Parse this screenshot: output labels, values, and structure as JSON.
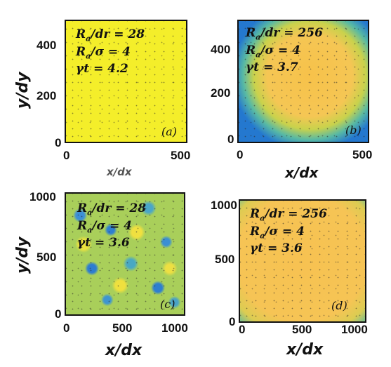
{
  "panels": [
    {
      "id": "a",
      "tag": "(a)",
      "params": {
        "line1_sub": "a",
        "line1_rest": "/dr = 28",
        "line2_sub": "a",
        "line2_rest": "/σ = 4",
        "line3": "γt = 4.2"
      },
      "x_ticks": [
        "0",
        "500"
      ],
      "y_ticks": [
        "0",
        "200",
        "400"
      ],
      "xlabel": "x/dx",
      "ylabel": "y/dy",
      "colors": {
        "base": "#f4ee2a",
        "edge": "#f4ee2a"
      }
    },
    {
      "id": "b",
      "tag": "(b)",
      "params": {
        "line1_sub": "a",
        "line1_rest": "/dr = 256",
        "line2_sub": "a",
        "line2_rest": "/σ = 4",
        "line3": "γt = 3.7"
      },
      "x_ticks": [
        "0",
        "500"
      ],
      "y_ticks": [
        "0",
        "200",
        "400"
      ],
      "xlabel": "x/dx",
      "ylabel": "",
      "colors": {
        "base": "#f7c846",
        "edge": "#2d8fd8"
      }
    },
    {
      "id": "c",
      "tag": "(c)",
      "params": {
        "line1_sub": "a",
        "line1_rest": "/dr = 28",
        "line2_sub": "a",
        "line2_rest": "/σ = 4",
        "line3": "γt = 3.6"
      },
      "x_ticks": [
        "0",
        "500",
        "1000"
      ],
      "y_ticks": [
        "0",
        "500",
        "1000"
      ],
      "xlabel": "x/dx",
      "ylabel": "y/dy",
      "colors": {
        "base": "#c9d74a",
        "edge": "#3c9fd0"
      }
    },
    {
      "id": "d",
      "tag": "(d)",
      "params": {
        "line1_sub": "a",
        "line1_rest": "/dr = 256",
        "line2_sub": "a",
        "line2_rest": "/σ = 4",
        "line3": "γt = 3.6"
      },
      "x_ticks": [
        "0",
        "500",
        "1000"
      ],
      "y_ticks": [
        "0",
        "500",
        "1000"
      ],
      "xlabel": "x/dx",
      "ylabel": "",
      "colors": {
        "base": "#f7c04e",
        "edge": "#1f6ec8"
      }
    }
  ],
  "param_labels": {
    "R": "R",
    "ratio2_symbol": "σ"
  }
}
